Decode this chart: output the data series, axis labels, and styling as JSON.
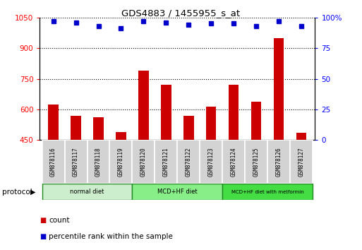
{
  "title": "GDS4883 / 1455955_s_at",
  "samples": [
    "GSM878116",
    "GSM878117",
    "GSM878118",
    "GSM878119",
    "GSM878120",
    "GSM878121",
    "GSM878122",
    "GSM878123",
    "GSM878124",
    "GSM878125",
    "GSM878126",
    "GSM878127"
  ],
  "counts": [
    625,
    567,
    560,
    490,
    790,
    720,
    567,
    612,
    720,
    637,
    950,
    487
  ],
  "percentile_ranks": [
    97,
    96,
    93,
    91,
    97,
    96,
    94,
    95,
    95,
    93,
    97,
    93
  ],
  "ylim_left": [
    450,
    1050
  ],
  "ylim_right": [
    0,
    100
  ],
  "yticks_left": [
    450,
    600,
    750,
    900,
    1050
  ],
  "yticks_right": [
    0,
    25,
    50,
    75,
    100
  ],
  "bar_color": "#cc0000",
  "dot_color": "#0000cc",
  "bar_width": 0.45,
  "groups": [
    {
      "label": "normal diet",
      "start": 0,
      "end": 4,
      "color": "#cceecc"
    },
    {
      "label": "MCD+HF diet",
      "start": 4,
      "end": 8,
      "color": "#88ee88"
    },
    {
      "label": "MCD+HF diet with metformin",
      "start": 8,
      "end": 12,
      "color": "#44dd44"
    }
  ],
  "protocol_label": "protocol",
  "legend_count_label": "count",
  "legend_percentile_label": "percentile rank within the sample",
  "background_color": "#ffffff"
}
